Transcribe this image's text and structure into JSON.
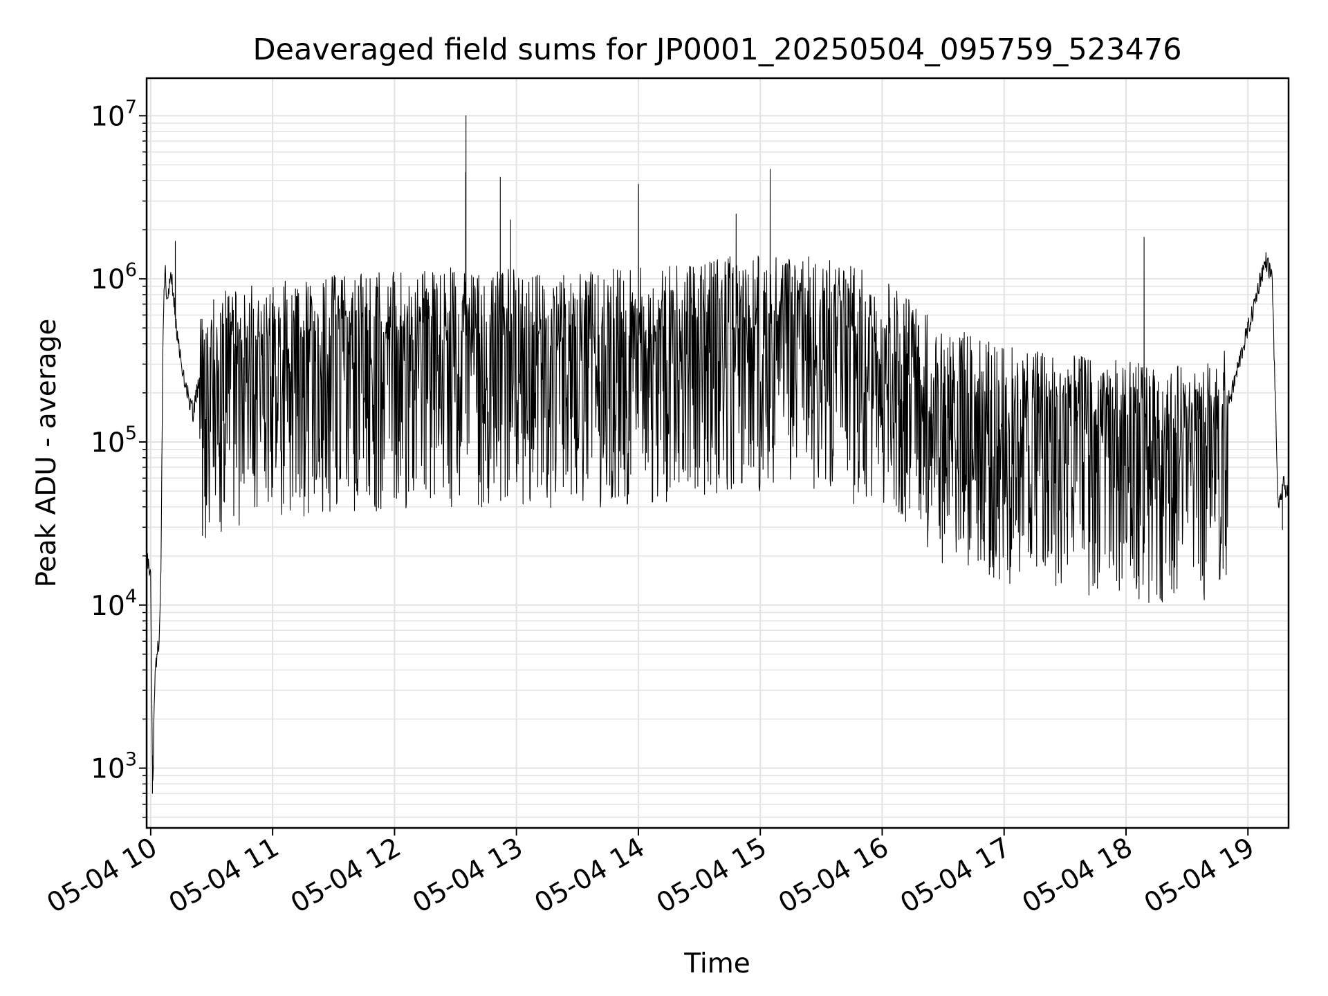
{
  "chart_data": {
    "type": "line",
    "title": "Deaveraged field sums for JP0001_20250504_095759_523476",
    "xlabel": "Time",
    "ylabel": "Peak ADU - average",
    "x_axis": {
      "kind": "time",
      "range": [
        "05-04 09:58",
        "05-04 19:20"
      ],
      "ticks": [
        "05-04 10",
        "05-04 11",
        "05-04 12",
        "05-04 13",
        "05-04 14",
        "05-04 15",
        "05-04 16",
        "05-04 17",
        "05-04 18",
        "05-04 19"
      ]
    },
    "y_axis": {
      "scale": "log",
      "range": [
        430,
        17000000
      ],
      "ticks": [
        {
          "base": "10",
          "exp": "3",
          "value": 1000
        },
        {
          "base": "10",
          "exp": "4",
          "value": 10000
        },
        {
          "base": "10",
          "exp": "5",
          "value": 100000
        },
        {
          "base": "10",
          "exp": "6",
          "value": 1000000
        },
        {
          "base": "10",
          "exp": "7",
          "value": 10000000
        }
      ]
    },
    "grid": true,
    "legend": "none",
    "line_color": "#000000",
    "grid_color": "#e3e3e3",
    "series": [
      {
        "x": [
          "05-04 09:58",
          "05-04 10:00",
          "05-04 10:01",
          "05-04 10:02",
          "05-04 10:04",
          "05-04 10:05",
          "05-04 10:06",
          "05-04 10:07",
          "05-04 10:08",
          "05-04 10:10",
          "05-04 10:12",
          "05-04 10:15",
          "05-04 10:18",
          "05-04 10:21",
          "05-04 10:24",
          "05-04 10:30",
          "05-04 10:45",
          "05-04 11:00",
          "05-04 11:30",
          "05-04 12:00",
          "05-04 12:30",
          "05-04 13:00",
          "05-04 13:30",
          "05-04 14:00",
          "05-04 14:30",
          "05-04 15:00",
          "05-04 15:30",
          "05-04 16:00",
          "05-04 16:30",
          "05-04 17:00",
          "05-04 17:30",
          "05-04 18:00",
          "05-04 18:30",
          "05-04 18:45",
          "05-04 18:52",
          "05-04 18:58",
          "05-04 19:02",
          "05-04 19:06",
          "05-04 19:09",
          "05-04 19:12",
          "05-04 19:13",
          "05-04 19:15",
          "05-04 19:17",
          "05-04 19:20"
        ],
        "y": [
          20000,
          14000,
          700,
          3500,
          6000,
          14000,
          400000,
          1200000,
          700000,
          1100000,
          600000,
          300000,
          200000,
          150000,
          250000,
          300000,
          350000,
          380000,
          400000,
          420000,
          450000,
          450000,
          420000,
          450000,
          500000,
          550000,
          520000,
          400000,
          200000,
          150000,
          130000,
          120000,
          110000,
          120000,
          200000,
          400000,
          600000,
          1000000,
          1300000,
          1000000,
          300000,
          35000,
          55000,
          50000
        ]
      }
    ],
    "notable_peaks": [
      {
        "x": "05-04 10:01",
        "y": 700
      },
      {
        "x": "05-04 10:12",
        "y": 1700000
      },
      {
        "x": "05-04 12:35",
        "y": 10000000
      },
      {
        "x": "05-04 12:35",
        "y": 4500000
      },
      {
        "x": "05-04 12:52",
        "y": 4200000
      },
      {
        "x": "05-04 12:57",
        "y": 2300000
      },
      {
        "x": "05-04 12:43",
        "y": 40000
      },
      {
        "x": "05-04 14:00",
        "y": 3800000
      },
      {
        "x": "05-04 14:00",
        "y": 2900000
      },
      {
        "x": "05-04 14:48",
        "y": 2500000
      },
      {
        "x": "05-04 15:05",
        "y": 4700000
      },
      {
        "x": "05-04 18:09",
        "y": 1800000
      },
      {
        "x": "05-04 19:17",
        "y": 29000
      }
    ]
  }
}
